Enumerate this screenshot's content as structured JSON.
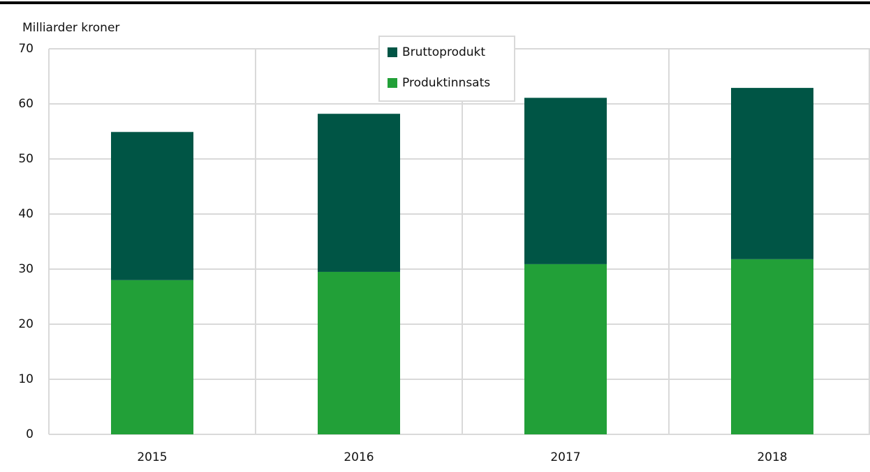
{
  "chart_data": {
    "type": "stacked_bar",
    "y_label": "Milliarder kroner",
    "categories": [
      "2015",
      "2016",
      "2017",
      "2018"
    ],
    "series": [
      {
        "name": "Produktinnsats",
        "color": "#22a038",
        "values": [
          28.0,
          29.5,
          30.9,
          31.8
        ]
      },
      {
        "name": "Bruttoprodukt",
        "color": "#005545",
        "values": [
          26.9,
          28.7,
          30.2,
          31.1
        ]
      }
    ],
    "ylim": [
      0,
      70
    ],
    "yticks": [
      0,
      10,
      20,
      30,
      40,
      50,
      60,
      70
    ],
    "grid": true,
    "legend": "top"
  }
}
